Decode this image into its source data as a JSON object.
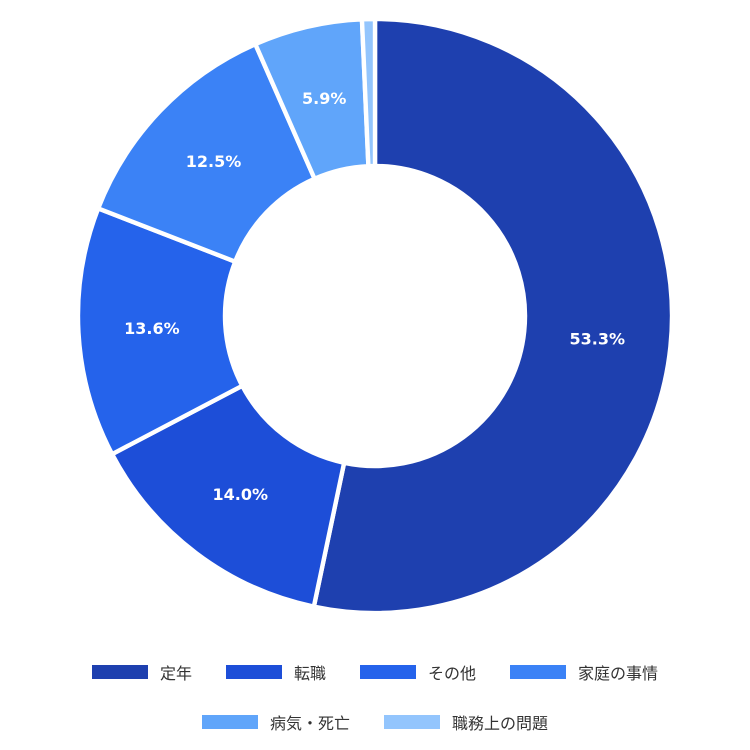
{
  "chart_data": {
    "type": "pie",
    "donut": true,
    "categories": [
      "定年",
      "転職",
      "その他",
      "家庭の事情",
      "病気・死亡",
      "職務上の問題"
    ],
    "values": [
      53.3,
      14.0,
      13.6,
      12.5,
      5.9,
      0.7
    ],
    "value_labels": [
      "53.3%",
      "14.0%",
      "13.6%",
      "12.5%",
      "5.9%",
      ""
    ],
    "colors": [
      "#1e40af",
      "#1d4ed8",
      "#2563eb",
      "#3b82f6",
      "#60a5fa",
      "#93c5fd"
    ],
    "legend_placement": "bottom"
  }
}
